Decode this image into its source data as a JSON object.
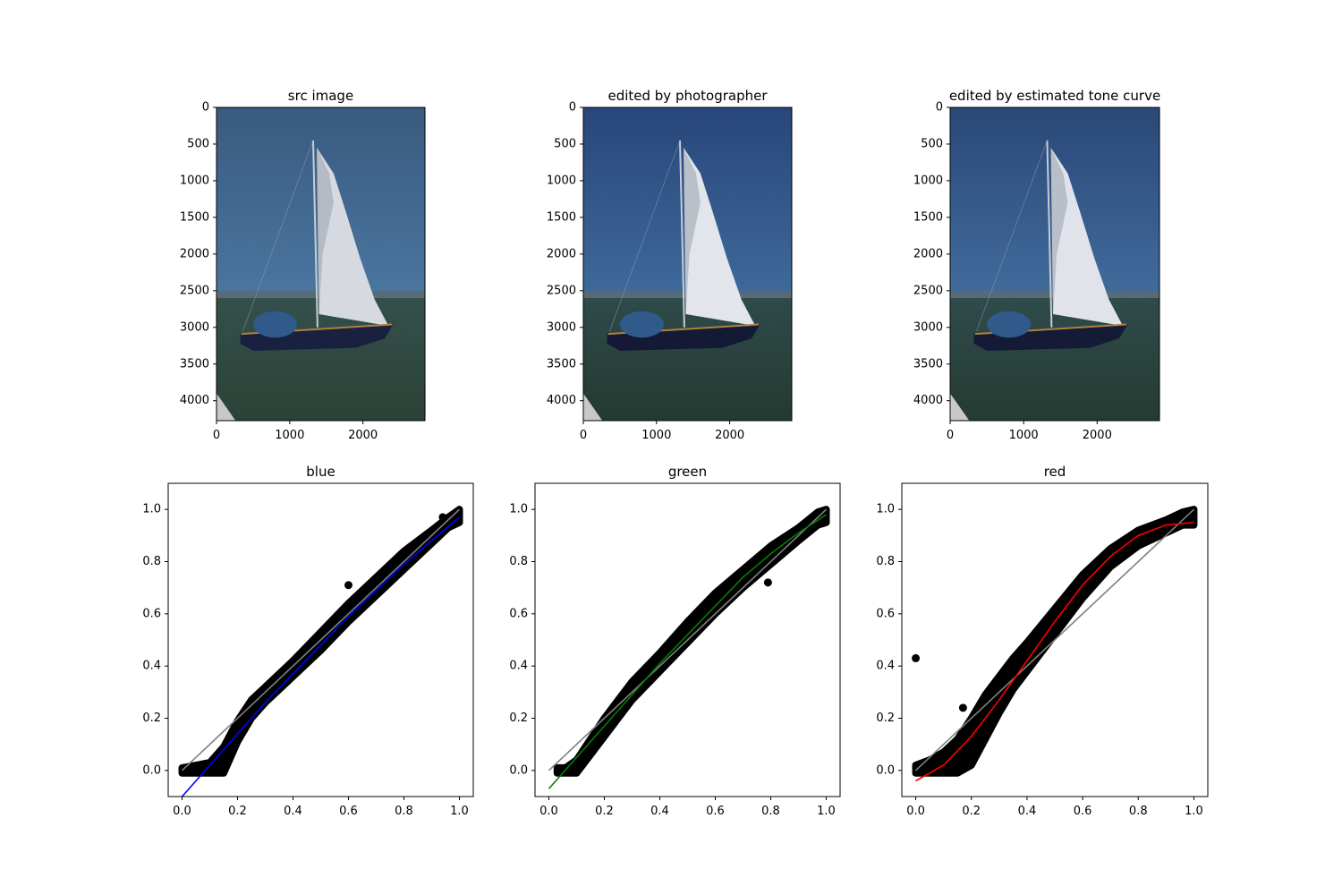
{
  "colors": {
    "blue": "#0000ff",
    "green": "#008000",
    "red": "#ff0000",
    "identity": "#808080",
    "scatter": "#000000"
  },
  "chart_data": [
    {
      "type": "image",
      "title": "src image",
      "x_ticks": [
        "0",
        "1000",
        "2000"
      ],
      "y_ticks": [
        "0",
        "500",
        "1000",
        "1500",
        "2000",
        "2500",
        "3000",
        "3500",
        "4000"
      ],
      "xlim": [
        0,
        2848
      ],
      "ylim": [
        4272,
        0
      ],
      "tone": {
        "sky_top": "#3a5a80",
        "sky_bottom": "#4a76a0",
        "water_top": "#34504c",
        "water_bottom": "#2b4236",
        "sail": "#d6dae0",
        "hull": "#1a2140"
      }
    },
    {
      "type": "image",
      "title": "edited by photographer",
      "x_ticks": [
        "0",
        "1000",
        "2000"
      ],
      "y_ticks": [
        "0",
        "500",
        "1000",
        "1500",
        "2000",
        "2500",
        "3000",
        "3500",
        "4000"
      ],
      "xlim": [
        0,
        2848
      ],
      "ylim": [
        4272,
        0
      ],
      "tone": {
        "sky_top": "#28467a",
        "sky_bottom": "#3f6a9c",
        "water_top": "#2e4a4a",
        "water_bottom": "#243a30",
        "sail": "#e2e6ec",
        "hull": "#141a36"
      }
    },
    {
      "type": "image",
      "title": "edited by estimated tone curve",
      "x_ticks": [
        "0",
        "1000",
        "2000"
      ],
      "y_ticks": [
        "0",
        "500",
        "1000",
        "1500",
        "2000",
        "2500",
        "3000",
        "3500",
        "4000"
      ],
      "xlim": [
        0,
        2848
      ],
      "ylim": [
        4272,
        0
      ],
      "tone": {
        "sky_top": "#2a4878",
        "sky_bottom": "#416c9c",
        "water_top": "#2f4b4b",
        "water_bottom": "#253b31",
        "sail": "#e0e4ea",
        "hull": "#151b37"
      }
    },
    {
      "type": "scatter",
      "title": "blue",
      "xlim": [
        -0.05,
        1.05
      ],
      "ylim": [
        -0.1,
        1.1
      ],
      "x_ticks": [
        "0.0",
        "0.2",
        "0.4",
        "0.6",
        "0.8",
        "1.0"
      ],
      "y_ticks": [
        "0.0",
        "0.2",
        "0.4",
        "0.6",
        "0.8",
        "1.0"
      ],
      "identity": [
        [
          0,
          0
        ],
        [
          1,
          1
        ]
      ],
      "fit": [
        [
          0.0,
          -0.1
        ],
        [
          0.1,
          0.02
        ],
        [
          0.2,
          0.14
        ],
        [
          0.3,
          0.26
        ],
        [
          0.4,
          0.37
        ],
        [
          0.5,
          0.48
        ],
        [
          0.6,
          0.59
        ],
        [
          0.7,
          0.69
        ],
        [
          0.8,
          0.79
        ],
        [
          0.9,
          0.88
        ],
        [
          1.0,
          0.97
        ]
      ],
      "scatter_band": {
        "x": [
          0.0,
          0.05,
          0.1,
          0.15,
          0.2,
          0.25,
          0.3,
          0.35,
          0.4,
          0.5,
          0.6,
          0.7,
          0.8,
          0.9,
          0.96,
          1.0
        ],
        "upper": [
          0.01,
          0.02,
          0.03,
          0.09,
          0.19,
          0.27,
          0.32,
          0.37,
          0.42,
          0.53,
          0.64,
          0.74,
          0.84,
          0.92,
          0.97,
          1.0
        ],
        "lower": [
          -0.01,
          -0.01,
          -0.01,
          -0.01,
          0.11,
          0.2,
          0.26,
          0.31,
          0.36,
          0.46,
          0.57,
          0.67,
          0.77,
          0.87,
          0.93,
          0.95
        ]
      },
      "outliers": [
        [
          0.28,
          0.26
        ],
        [
          0.6,
          0.71
        ],
        [
          0.94,
          0.97
        ]
      ]
    },
    {
      "type": "scatter",
      "title": "green",
      "xlim": [
        -0.05,
        1.05
      ],
      "ylim": [
        -0.1,
        1.1
      ],
      "x_ticks": [
        "0.0",
        "0.2",
        "0.4",
        "0.6",
        "0.8",
        "1.0"
      ],
      "y_ticks": [
        "0.0",
        "0.2",
        "0.4",
        "0.6",
        "0.8",
        "1.0"
      ],
      "identity": [
        [
          0,
          0
        ],
        [
          1,
          1
        ]
      ],
      "fit": [
        [
          0.0,
          -0.07
        ],
        [
          0.1,
          0.05
        ],
        [
          0.2,
          0.17
        ],
        [
          0.3,
          0.29
        ],
        [
          0.4,
          0.41
        ],
        [
          0.5,
          0.52
        ],
        [
          0.6,
          0.63
        ],
        [
          0.7,
          0.74
        ],
        [
          0.8,
          0.83
        ],
        [
          0.9,
          0.91
        ],
        [
          1.0,
          0.98
        ]
      ],
      "scatter_band": {
        "x": [
          0.03,
          0.06,
          0.1,
          0.15,
          0.2,
          0.25,
          0.3,
          0.4,
          0.5,
          0.6,
          0.7,
          0.8,
          0.9,
          0.97,
          1.0
        ],
        "upper": [
          0.01,
          0.01,
          0.04,
          0.12,
          0.2,
          0.27,
          0.34,
          0.45,
          0.57,
          0.68,
          0.77,
          0.86,
          0.93,
          0.99,
          1.0
        ],
        "lower": [
          -0.01,
          -0.01,
          -0.01,
          0.06,
          0.13,
          0.2,
          0.27,
          0.38,
          0.49,
          0.6,
          0.7,
          0.79,
          0.88,
          0.94,
          0.95
        ]
      },
      "outliers": [
        [
          0.79,
          0.72
        ]
      ]
    },
    {
      "type": "scatter",
      "title": "red",
      "xlim": [
        -0.05,
        1.05
      ],
      "ylim": [
        -0.1,
        1.1
      ],
      "x_ticks": [
        "0.0",
        "0.2",
        "0.4",
        "0.6",
        "0.8",
        "1.0"
      ],
      "y_ticks": [
        "0.0",
        "0.2",
        "0.4",
        "0.6",
        "0.8",
        "1.0"
      ],
      "identity": [
        [
          0,
          0
        ],
        [
          1,
          1
        ]
      ],
      "fit": [
        [
          0.0,
          -0.04
        ],
        [
          0.1,
          0.02
        ],
        [
          0.2,
          0.13
        ],
        [
          0.3,
          0.27
        ],
        [
          0.4,
          0.42
        ],
        [
          0.5,
          0.57
        ],
        [
          0.6,
          0.71
        ],
        [
          0.7,
          0.82
        ],
        [
          0.8,
          0.9
        ],
        [
          0.9,
          0.94
        ],
        [
          1.0,
          0.95
        ]
      ],
      "scatter_band": {
        "x": [
          0.0,
          0.05,
          0.1,
          0.15,
          0.2,
          0.25,
          0.3,
          0.35,
          0.4,
          0.5,
          0.6,
          0.7,
          0.8,
          0.9,
          0.96,
          1.0
        ],
        "upper": [
          0.02,
          0.04,
          0.07,
          0.12,
          0.2,
          0.29,
          0.36,
          0.43,
          0.49,
          0.62,
          0.75,
          0.85,
          0.92,
          0.96,
          0.99,
          1.0
        ],
        "lower": [
          -0.01,
          -0.01,
          -0.01,
          -0.01,
          0.02,
          0.12,
          0.22,
          0.31,
          0.38,
          0.52,
          0.66,
          0.78,
          0.86,
          0.91,
          0.94,
          0.94
        ]
      },
      "outliers": [
        [
          0.0,
          0.43
        ],
        [
          0.17,
          0.24
        ],
        [
          0.29,
          0.34
        ],
        [
          0.33,
          0.39
        ]
      ]
    }
  ]
}
